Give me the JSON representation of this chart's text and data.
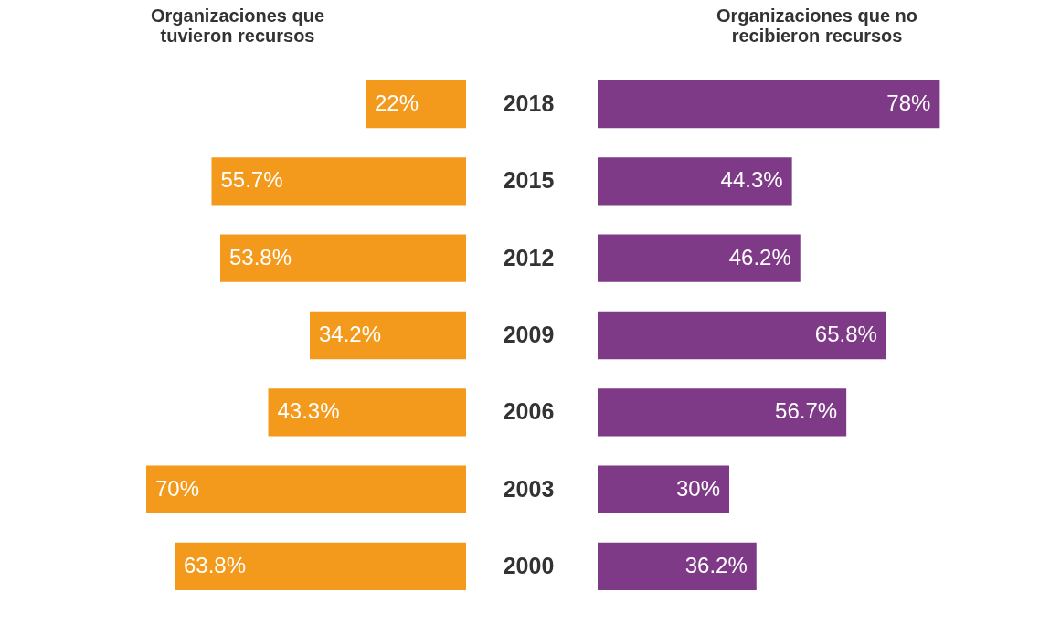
{
  "chart_data": [
    {
      "type": "bar",
      "orientation": "horizontal",
      "title": "Organizaciones que tuvieron recursos",
      "categories": [
        "2018",
        "2015",
        "2012",
        "2009",
        "2006",
        "2003",
        "2000"
      ],
      "values": [
        22,
        55.7,
        53.8,
        34.2,
        43.3,
        70,
        63.8
      ],
      "value_labels": [
        "22%",
        "55.7%",
        "53.8%",
        "34.2%",
        "43.3%",
        "70%",
        "63.8%"
      ],
      "colors": [
        "#f39a1c",
        "#f39a1c",
        "#f39a1c",
        "#f39a1c",
        "#f39a1c",
        "#f39a1c",
        "#f39a1c"
      ],
      "xlim": [
        100,
        0
      ],
      "tick_labels": false
    },
    {
      "type": "bar",
      "orientation": "horizontal",
      "title": "Organizaciones que no recibieron recursos",
      "categories": [
        "2018",
        "2015",
        "2012",
        "2009",
        "2006",
        "2003",
        "2000"
      ],
      "values": [
        78,
        44.3,
        46.2,
        65.8,
        56.7,
        30,
        36.2
      ],
      "value_labels": [
        "78%",
        "44.3%",
        "46.2%",
        "65.8%",
        "56.7%",
        "30%",
        "36.2%"
      ],
      "colors": [
        "#7e3a86",
        "#7e3a86",
        "#7e3a86",
        "#7e3a86",
        "#7e3a86",
        "#7e3a86",
        "#7e3a86"
      ],
      "xlim": [
        0,
        100
      ],
      "tick_labels": "y"
    }
  ]
}
